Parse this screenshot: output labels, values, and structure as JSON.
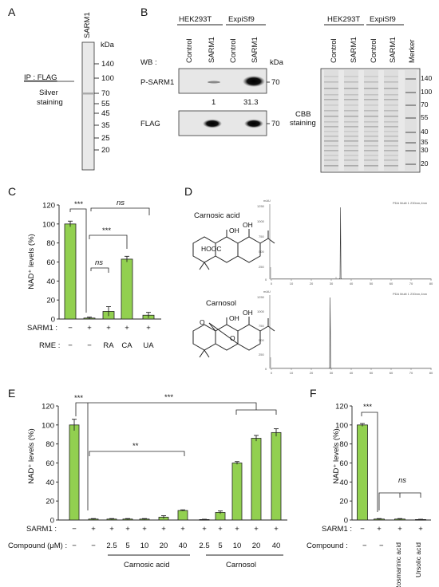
{
  "panels": {
    "A": {
      "letter": "A",
      "lane": "SARM1",
      "kda": "kDa",
      "markers": [
        "140",
        "100",
        "70",
        "55",
        "45",
        "35",
        "25",
        "20"
      ],
      "ip": "IP : FLAG",
      "stain1": "Silver",
      "stain2": "staining"
    },
    "B": {
      "letter": "B",
      "group1": "HEK293T",
      "group2": "ExpiSf9",
      "lanes": [
        "Control",
        "SARM1",
        "Control",
        "SARM1"
      ],
      "lanes_right": [
        "Control",
        "SARM1",
        "Control",
        "SARM1",
        "Merker"
      ],
      "wb": "WB :",
      "kda": "kDa",
      "blot1": "P-SARM1",
      "blot2": "FLAG",
      "mw70": "70",
      "quant": [
        "1",
        "31.3"
      ],
      "cbb1": "CBB",
      "cbb2": "staining",
      "cbb_markers": [
        "140",
        "100",
        "70",
        "55",
        "40",
        "35",
        "30",
        "20"
      ]
    },
    "C": {
      "letter": "C",
      "ylabel": "NAD⁺ levels (%)",
      "yticks": [
        "0",
        "20",
        "40",
        "60",
        "80",
        "100",
        "120"
      ],
      "row1_label": "SARM1 :",
      "row1": [
        "−",
        "+",
        "+",
        "+",
        "+"
      ],
      "row2_label": "RME :",
      "row2": [
        "−",
        "−",
        "RA",
        "CA",
        "UA"
      ],
      "sig": [
        "***",
        "***",
        "ns",
        "ns"
      ]
    },
    "D": {
      "letter": "D",
      "compound1": "Carnosic acid",
      "compound2": "Carnosol",
      "group_hooc": "HOOC",
      "group_oh": "OH",
      "group_o": "O",
      "unit": "mAU",
      "legend": "PDA Multi 1 230nm,4nm",
      "yticks1": [
        "1250",
        "1000",
        "750",
        "500",
        "250",
        "0"
      ],
      "yticks2": [
        "1250",
        "1000",
        "750",
        "500",
        "250",
        "0"
      ],
      "xticks": [
        "0",
        "10",
        "20",
        "30",
        "40",
        "50",
        "60",
        "70",
        "80"
      ]
    },
    "E": {
      "letter": "E",
      "ylabel": "NAD⁺ levels (%)",
      "yticks": [
        "0",
        "20",
        "40",
        "60",
        "80",
        "100",
        "120"
      ],
      "row1_label": "SARM1 :",
      "row1": [
        "−",
        "+",
        "+",
        "+",
        "+",
        "+",
        "+",
        "+",
        "+",
        "+",
        "+",
        "+"
      ],
      "row2_label": "Compound (μM) :",
      "row2": [
        "−",
        "−",
        "2.5",
        "5",
        "10",
        "20",
        "40",
        "2.5",
        "5",
        "10",
        "20",
        "40"
      ],
      "group1": "Carnosic acid",
      "group2": "Carnosol",
      "sig": [
        "***",
        "***",
        "**"
      ]
    },
    "F": {
      "letter": "F",
      "ylabel": "NAD⁺ levels (%)",
      "yticks": [
        "0",
        "20",
        "40",
        "60",
        "80",
        "100",
        "120"
      ],
      "row1_label": "SARM1 :",
      "row1": [
        "−",
        "+",
        "+",
        "+"
      ],
      "row2_label": "Compound :",
      "row2": [
        "−",
        "−",
        "Rosmarinic acid",
        "Ursolic acid"
      ],
      "sig": [
        "***",
        "ns"
      ]
    }
  },
  "chart_data": [
    {
      "panel": "C",
      "type": "bar",
      "categories": [
        "1",
        "2",
        "3",
        "4",
        "5"
      ],
      "values": [
        100,
        1,
        8,
        63,
        4
      ],
      "errors": [
        3,
        1,
        5,
        3,
        3
      ],
      "ylabel": "NAD⁺ levels (%)",
      "ylim": [
        0,
        120
      ]
    },
    {
      "panel": "E",
      "type": "bar",
      "categories": [
        "1",
        "2",
        "3",
        "4",
        "5",
        "6",
        "7",
        "8",
        "9",
        "10",
        "11",
        "12"
      ],
      "values": [
        100,
        1,
        1,
        1,
        1,
        3,
        10,
        0.5,
        8,
        60,
        86,
        92
      ],
      "errors": [
        6,
        0.5,
        0.5,
        0.5,
        0.5,
        1.5,
        0.7,
        0.3,
        1.5,
        1.5,
        3,
        4
      ],
      "ylabel": "NAD⁺ levels (%)",
      "ylim": [
        0,
        120
      ]
    },
    {
      "panel": "F",
      "type": "bar",
      "categories": [
        "1",
        "2",
        "3",
        "4"
      ],
      "values": [
        100,
        1,
        1,
        0.5
      ],
      "errors": [
        1.5,
        0.5,
        0.5,
        0.3
      ],
      "ylabel": "NAD⁺ levels (%)",
      "ylim": [
        0,
        120
      ]
    }
  ]
}
